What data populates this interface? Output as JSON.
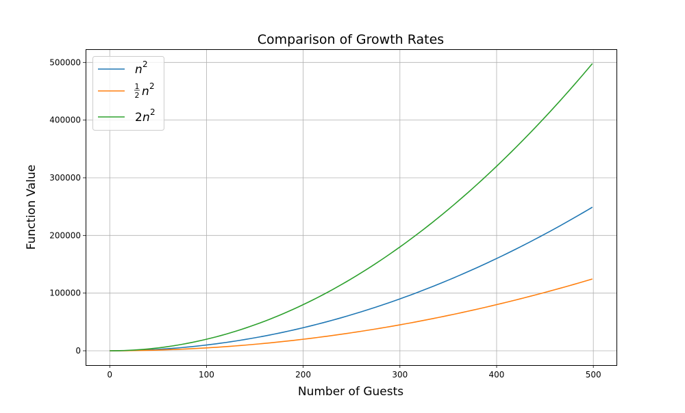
{
  "chart_data": {
    "type": "line",
    "title": "Comparison of Growth Rates",
    "xlabel": "Number of Guests",
    "ylabel": "Function Value",
    "xlim": [
      -24.95,
      523.95
    ],
    "ylim": [
      -24900,
      522902
    ],
    "grid": true,
    "legend_position": "top-left",
    "xticks": [
      0,
      100,
      200,
      300,
      400,
      500
    ],
    "yticks": [
      0,
      100000,
      200000,
      300000,
      400000,
      500000
    ],
    "x": [
      0,
      25,
      50,
      75,
      100,
      125,
      150,
      175,
      200,
      225,
      250,
      275,
      300,
      325,
      350,
      375,
      400,
      425,
      450,
      475,
      499
    ],
    "series": [
      {
        "name": "n^2",
        "label_prefix": "",
        "label_var": "n",
        "label_exp": "2",
        "color": "#1f77b4",
        "values": [
          0,
          625,
          2500,
          5625,
          10000,
          15625,
          22500,
          30625,
          40000,
          50625,
          62500,
          75625,
          90000,
          105625,
          122500,
          140625,
          160000,
          180625,
          202500,
          225625,
          249001
        ]
      },
      {
        "name": "1/2 n^2",
        "label_prefix": "1/2",
        "label_var": "n",
        "label_exp": "2",
        "color": "#ff7f0e",
        "values": [
          0,
          312.5,
          1250,
          2812.5,
          5000,
          7812.5,
          11250,
          15312.5,
          20000,
          25312.5,
          31250,
          37812.5,
          45000,
          52812.5,
          61250,
          70312.5,
          80000,
          90312.5,
          101250,
          112812.5,
          124500.5
        ]
      },
      {
        "name": "2n^2",
        "label_prefix": "2",
        "label_var": "n",
        "label_exp": "2",
        "color": "#2ca02c",
        "values": [
          0,
          1250,
          5000,
          11250,
          20000,
          31250,
          45000,
          61250,
          80000,
          101250,
          125000,
          151250,
          180000,
          211250,
          245000,
          281250,
          320000,
          361250,
          405000,
          451250,
          498002
        ]
      }
    ]
  }
}
